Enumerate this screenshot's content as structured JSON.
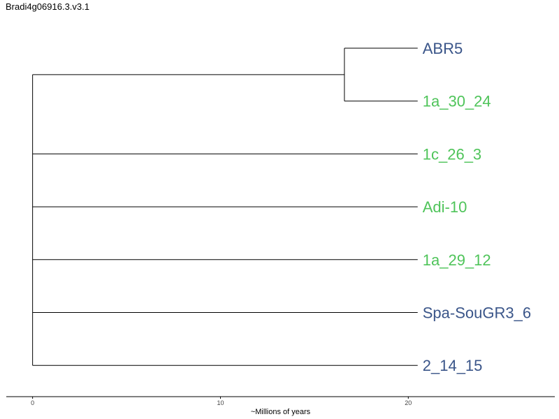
{
  "title": "Bradi4g06916.3.v3.1",
  "axis": {
    "label": "~Millions of years",
    "ticks": [
      0,
      10,
      20
    ],
    "range": [
      -1.4,
      27.8
    ]
  },
  "colors": {
    "blue": "#3a5589",
    "green": "#4fc45a",
    "line": "#000000"
  },
  "tree": {
    "leaf_x": 20.5,
    "inner_node_x": 16.6,
    "root_x": 0,
    "leaves": [
      {
        "label": "ABR5",
        "color": "blue"
      },
      {
        "label": "1a_30_24",
        "color": "green"
      },
      {
        "label": "1c_26_3",
        "color": "green"
      },
      {
        "label": "Adi-10",
        "color": "green"
      },
      {
        "label": "1a_29_12",
        "color": "green"
      },
      {
        "label": "Spa-SouGR3_6",
        "color": "blue"
      },
      {
        "label": "2_14_15",
        "color": "blue"
      }
    ]
  }
}
